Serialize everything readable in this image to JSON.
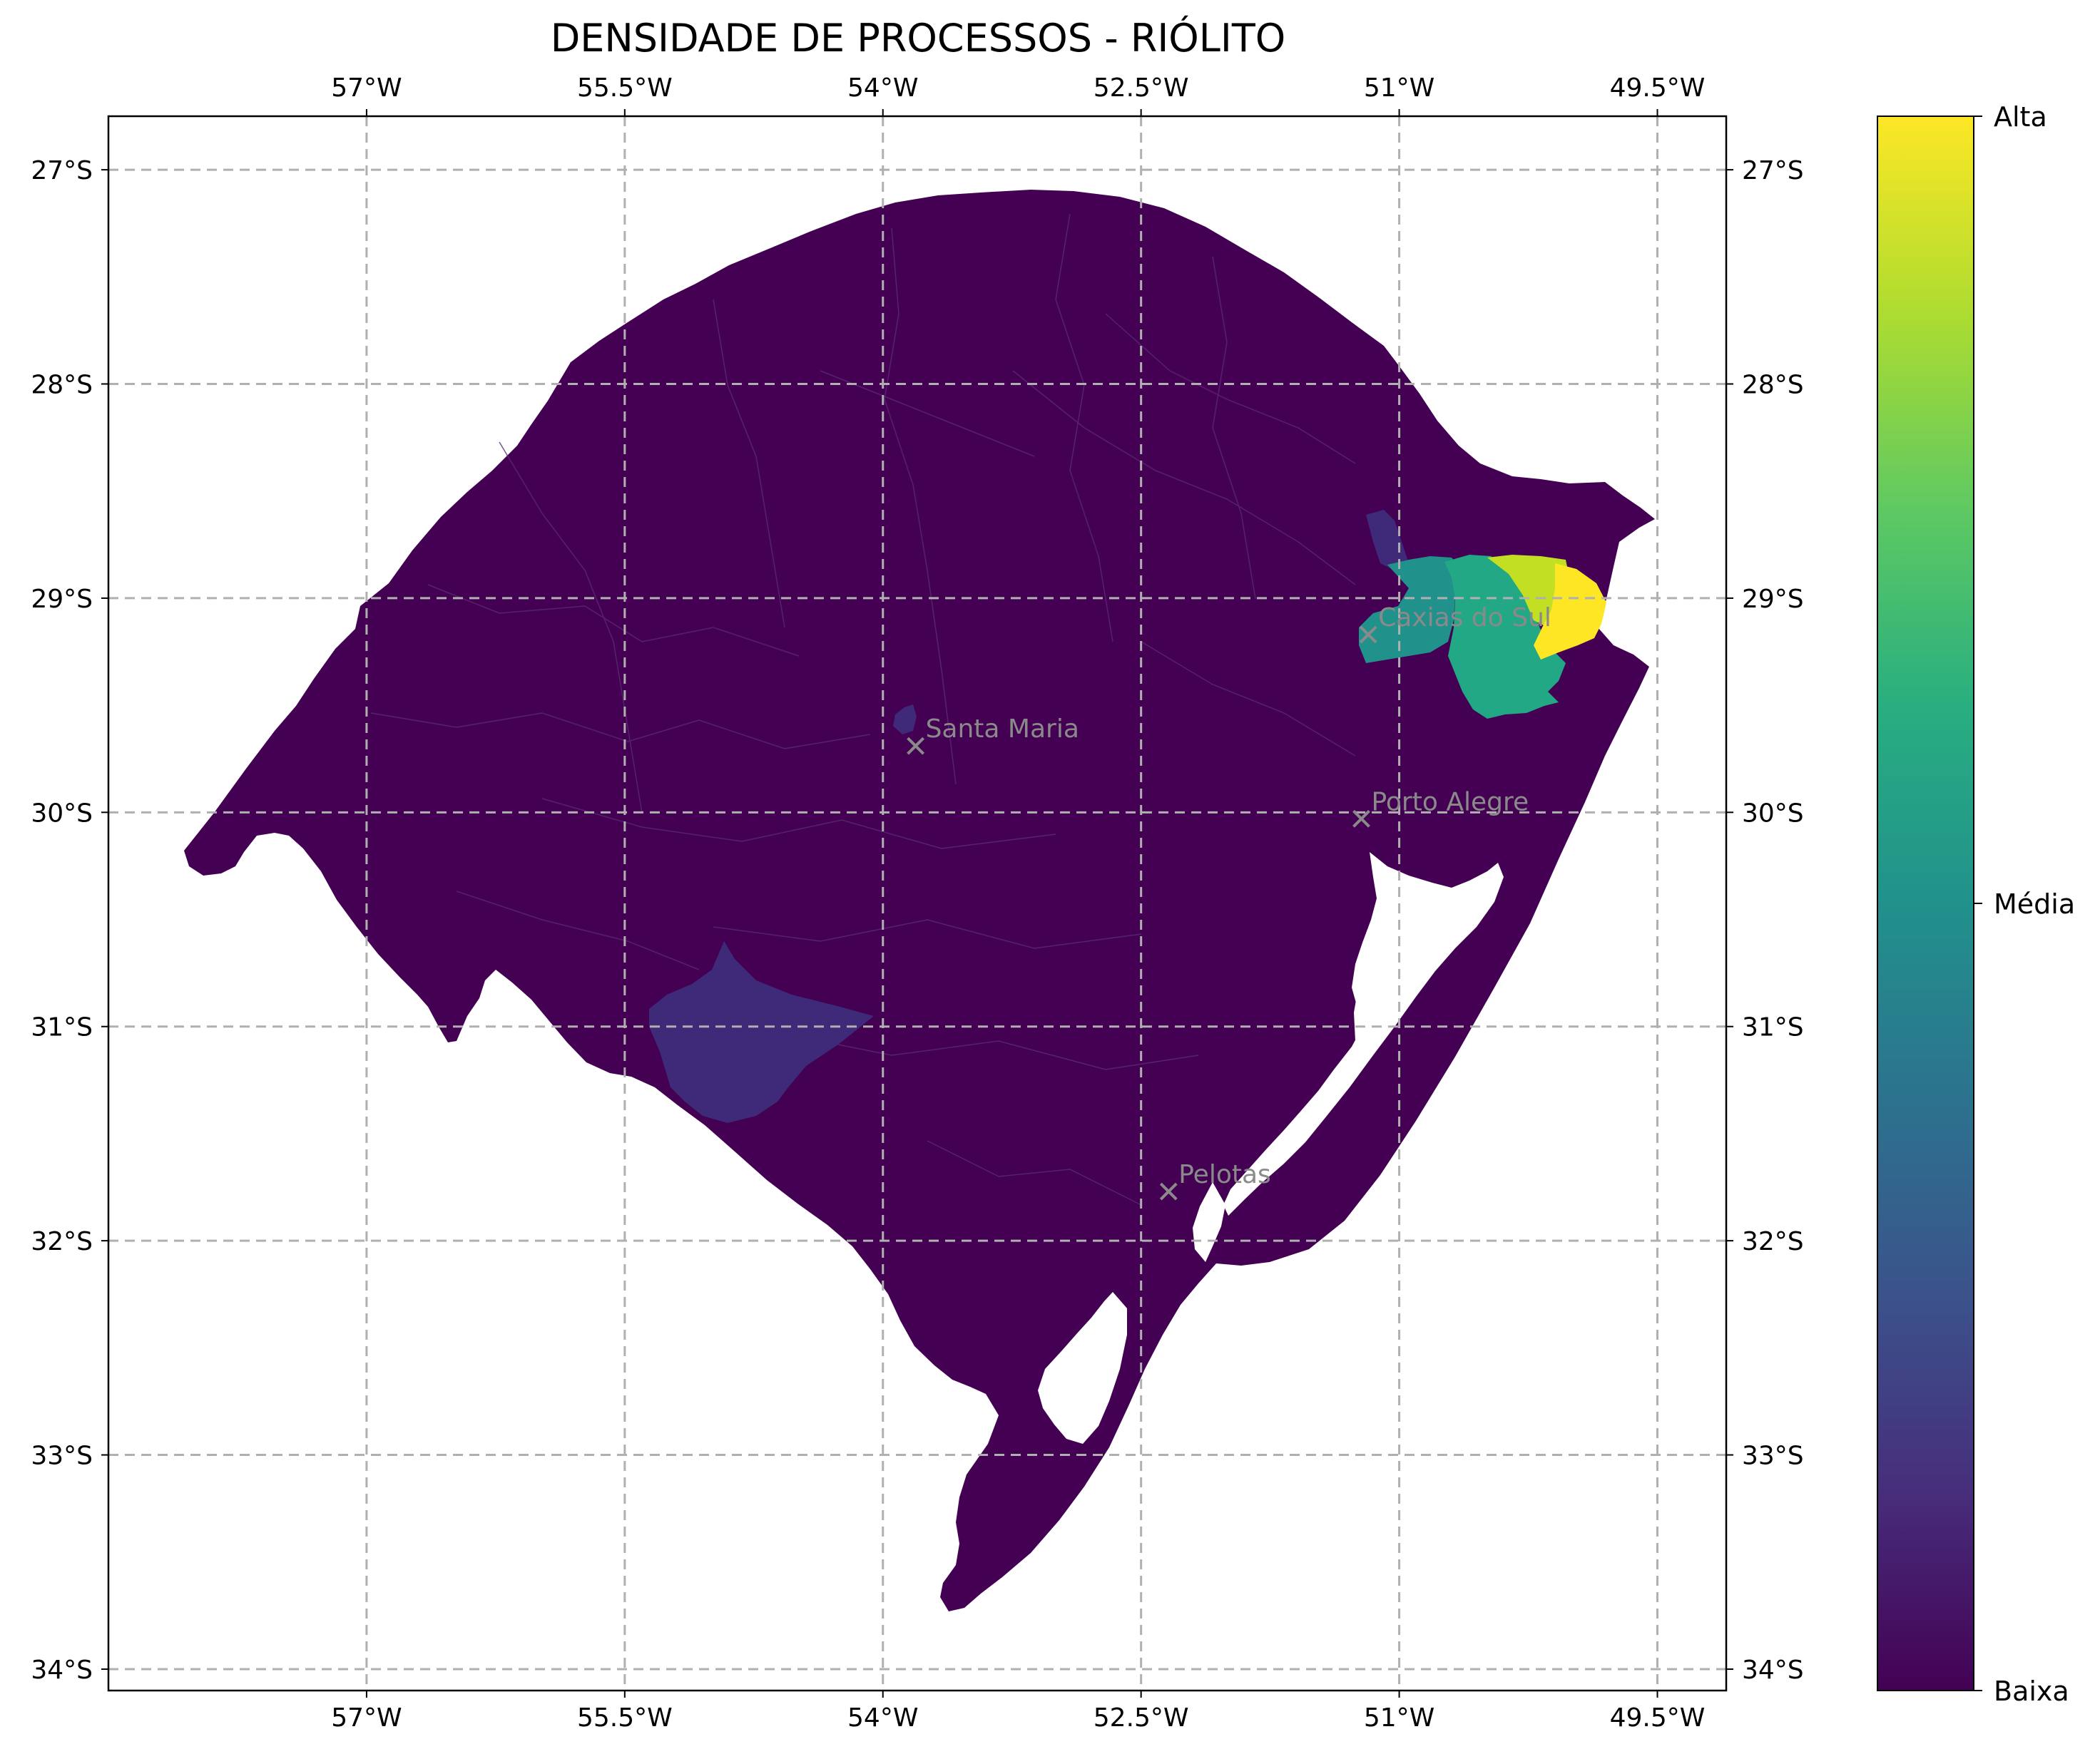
{
  "title": "DENSIDADE DE PROCESSOS - RIÓLITO",
  "colors": {
    "low": "#440154",
    "low_mid": "#3e2a78",
    "mid": "#21918c",
    "mid_high": "#22a884",
    "high": "#c2df23",
    "max": "#fde725",
    "grid": "#b0b0b0",
    "city": "#8a8a8a"
  },
  "chart_data": {
    "type": "heatmap",
    "map_type": "choropleth",
    "region": "Rio Grande do Sul",
    "xlim": [
      -58.5,
      -49.1
    ],
    "ylim": [
      -34.1,
      -26.75
    ],
    "grid": true,
    "longitude_ticks": [
      {
        "value": -57.0,
        "label": "57°W"
      },
      {
        "value": -55.5,
        "label": "55.5°W"
      },
      {
        "value": -54.0,
        "label": "54°W"
      },
      {
        "value": -52.5,
        "label": "52.5°W"
      },
      {
        "value": -51.0,
        "label": "51°W"
      },
      {
        "value": -49.5,
        "label": "49.5°W"
      }
    ],
    "latitude_ticks": [
      {
        "value": -27,
        "label": "27°S"
      },
      {
        "value": -28,
        "label": "28°S"
      },
      {
        "value": -29,
        "label": "29°S"
      },
      {
        "value": -30,
        "label": "30°S"
      },
      {
        "value": -31,
        "label": "31°S"
      },
      {
        "value": -32,
        "label": "32°S"
      },
      {
        "value": -33,
        "label": "33°S"
      },
      {
        "value": -34,
        "label": "34°S"
      }
    ],
    "cities": [
      {
        "name": "Caxias do Sul",
        "lon": -51.18,
        "lat": -29.17
      },
      {
        "name": "Santa Maria",
        "lon": -53.81,
        "lat": -29.69
      },
      {
        "name": "Porto Alegre",
        "lon": -51.22,
        "lat": -30.03
      },
      {
        "name": "Pelotas",
        "lon": -52.34,
        "lat": -31.77
      }
    ],
    "colorbar": {
      "colormap": "viridis",
      "labels": [
        {
          "position": 1.0,
          "label": "Alta"
        },
        {
          "position": 0.5,
          "label": "Média"
        },
        {
          "position": 0.0,
          "label": "Baixa"
        }
      ]
    }
  }
}
